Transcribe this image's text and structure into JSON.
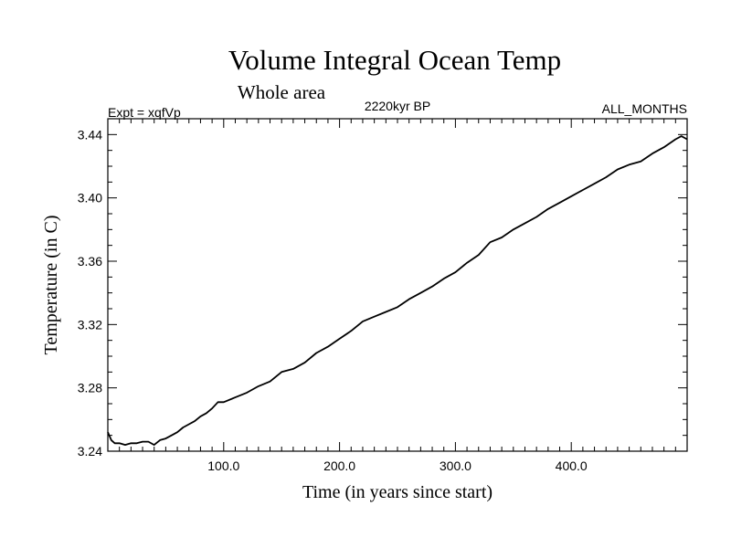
{
  "chart_data": {
    "type": "line",
    "title": "Volume Integral Ocean Temp",
    "subtitle": "Whole area",
    "annotation_left": "Expt = xqfVp",
    "annotation_center": "2220kyr BP",
    "annotation_right": "ALL_MONTHS",
    "xlabel": "Time (in years since start)",
    "ylabel": "Temperature (in C)",
    "xlim": [
      0,
      500
    ],
    "ylim": [
      3.24,
      3.45
    ],
    "xticks": [
      100,
      200,
      300,
      400
    ],
    "xtick_labels": [
      "100.0",
      "200.0",
      "300.0",
      "400.0"
    ],
    "yticks": [
      3.24,
      3.28,
      3.32,
      3.36,
      3.4,
      3.44
    ],
    "ytick_labels": [
      "3.24",
      "3.28",
      "3.32",
      "3.36",
      "3.40",
      "3.44"
    ],
    "grid": false,
    "series": [
      {
        "name": "Volume Integral Ocean Temp",
        "color": "#000000",
        "x": [
          0,
          3,
          6,
          10,
          15,
          20,
          25,
          30,
          35,
          40,
          45,
          50,
          55,
          60,
          65,
          70,
          75,
          80,
          85,
          90,
          95,
          100,
          110,
          120,
          130,
          140,
          150,
          160,
          170,
          180,
          190,
          200,
          210,
          220,
          230,
          240,
          250,
          260,
          270,
          280,
          290,
          300,
          310,
          320,
          330,
          340,
          350,
          360,
          370,
          380,
          390,
          400,
          410,
          420,
          430,
          440,
          450,
          460,
          470,
          480,
          490,
          495,
          500
        ],
        "y": [
          3.252,
          3.247,
          3.245,
          3.245,
          3.244,
          3.245,
          3.245,
          3.246,
          3.246,
          3.244,
          3.247,
          3.248,
          3.25,
          3.252,
          3.255,
          3.257,
          3.259,
          3.262,
          3.264,
          3.267,
          3.271,
          3.271,
          3.274,
          3.277,
          3.281,
          3.284,
          3.29,
          3.292,
          3.296,
          3.302,
          3.306,
          3.311,
          3.316,
          3.322,
          3.325,
          3.328,
          3.331,
          3.336,
          3.34,
          3.344,
          3.349,
          3.353,
          3.359,
          3.364,
          3.372,
          3.375,
          3.38,
          3.384,
          3.388,
          3.393,
          3.397,
          3.401,
          3.405,
          3.409,
          3.413,
          3.418,
          3.421,
          3.423,
          3.428,
          3.432,
          3.437,
          3.439,
          3.437
        ]
      }
    ]
  }
}
